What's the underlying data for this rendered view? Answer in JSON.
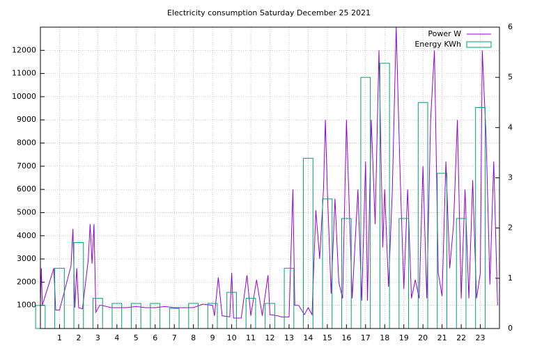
{
  "chart_data": {
    "type": "line",
    "title": "Electricity consumption Saturday December 25 2021",
    "xlim": [
      0,
      24
    ],
    "ylim": [
      0,
      13000
    ],
    "y2lim": [
      0,
      6
    ],
    "xticks": [
      1,
      2,
      3,
      4,
      5,
      6,
      7,
      8,
      9,
      10,
      11,
      12,
      13,
      14,
      15,
      16,
      17,
      18,
      19,
      20,
      21,
      22,
      23
    ],
    "yticks": [
      1000,
      2000,
      3000,
      4000,
      5000,
      6000,
      7000,
      8000,
      9000,
      10000,
      11000,
      12000
    ],
    "y2ticks": [
      0,
      1,
      2,
      3,
      4,
      5,
      6
    ],
    "grid": true,
    "legend": "top-right",
    "series": [
      {
        "name": "Power W",
        "color": "#9400d3",
        "type": "line",
        "x": [
          0,
          0.05,
          0.1,
          0.7,
          0.8,
          1.0,
          1.6,
          1.7,
          1.8,
          1.9,
          2.0,
          2.2,
          2.5,
          2.6,
          2.7,
          2.8,
          2.9,
          3.1,
          3.2,
          3.7,
          4.0,
          4.5,
          5.0,
          5.5,
          6.0,
          6.5,
          7.0,
          7.5,
          8.0,
          8.5,
          9.0,
          9.1,
          9.3,
          9.5,
          9.9,
          10.0,
          10.1,
          10.5,
          10.8,
          11.0,
          11.3,
          11.6,
          11.9,
          12.0,
          12.4,
          12.6,
          13.0,
          13.2,
          13.3,
          13.5,
          13.8,
          14.0,
          14.2,
          14.4,
          14.6,
          14.8,
          14.9,
          15.0,
          15.2,
          15.4,
          15.6,
          15.8,
          16.0,
          16.3,
          16.6,
          16.8,
          17.0,
          17.1,
          17.3,
          17.5,
          17.7,
          17.9,
          18.0,
          18.2,
          18.4,
          18.6,
          18.8,
          19.0,
          19.2,
          19.4,
          19.6,
          19.8,
          20.0,
          20.2,
          20.4,
          20.6,
          20.8,
          21.0,
          21.2,
          21.4,
          21.6,
          21.8,
          22.0,
          22.2,
          22.4,
          22.6,
          22.8,
          23.0,
          23.1,
          23.3,
          23.5,
          23.7,
          23.9
        ],
        "values": [
          1000,
          2600,
          1000,
          2600,
          800,
          800,
          2700,
          4300,
          900,
          2600,
          900,
          850,
          2950,
          4500,
          2800,
          4500,
          700,
          1000,
          1000,
          900,
          900,
          900,
          950,
          900,
          900,
          950,
          900,
          900,
          900,
          1050,
          1000,
          550,
          2200,
          550,
          500,
          2400,
          450,
          450,
          2300,
          550,
          2100,
          550,
          2300,
          600,
          550,
          500,
          500,
          6000,
          1000,
          1000,
          600,
          900,
          600,
          5100,
          3000,
          6000,
          9000,
          6000,
          1500,
          5600,
          2000,
          1300,
          9000,
          1300,
          6000,
          1200,
          7200,
          1200,
          9000,
          4500,
          12000,
          3500,
          6000,
          1800,
          6000,
          13000,
          6800,
          1700,
          6000,
          1300,
          2100,
          1300,
          7000,
          1300,
          9000,
          12000,
          2400,
          1400,
          7200,
          2600,
          4500,
          9000,
          1300,
          6000,
          1300,
          6400,
          1300,
          2400,
          12000,
          8300,
          1900,
          7200,
          1000
        ]
      },
      {
        "name": "Energy KWh",
        "color": "#009e73",
        "type": "boxes",
        "axis": "y2",
        "x": [
          0,
          1,
          2,
          3,
          4,
          5,
          6,
          7,
          8,
          9,
          10,
          11,
          12,
          13,
          14,
          15,
          16,
          17,
          18,
          19,
          20,
          21,
          22,
          23
        ],
        "values": [
          0.46,
          1.2,
          1.71,
          0.6,
          0.5,
          0.5,
          0.5,
          0.4,
          0.5,
          0.5,
          0.72,
          0.6,
          0.5,
          1.2,
          3.39,
          2.58,
          2.19,
          5.0,
          5.28,
          2.19,
          4.5,
          3.09,
          2.19,
          4.4
        ]
      }
    ]
  }
}
